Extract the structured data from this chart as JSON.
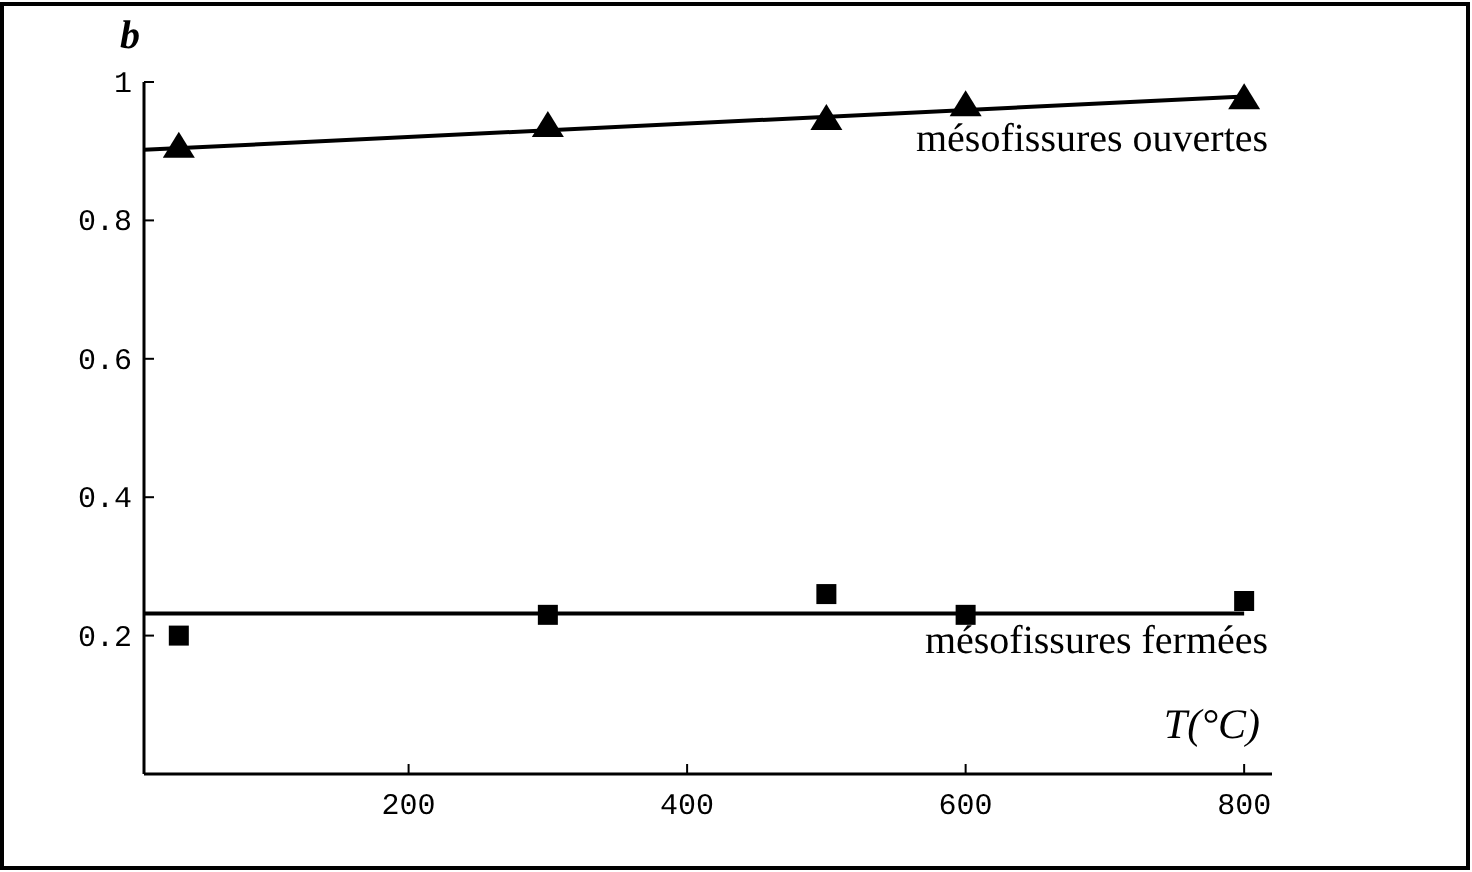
{
  "chart_data": {
    "type": "scatter",
    "xlabel": "T(°C)",
    "ylabel": "b",
    "xlim": [
      10,
      820
    ],
    "ylim": [
      0,
      1
    ],
    "xticks": [
      200,
      400,
      600,
      800
    ],
    "yticks": [
      0.2,
      0.4,
      0.6,
      0.8,
      1
    ],
    "grid": false,
    "series": [
      {
        "name": "mésofissures ouvertes",
        "marker": "triangle",
        "color": "#000000",
        "x": [
          35,
          300,
          500,
          600,
          800
        ],
        "values": [
          0.905,
          0.935,
          0.945,
          0.965,
          0.975
        ]
      },
      {
        "type": "line",
        "marker": "none",
        "color": "#000000",
        "x": [
          10,
          800
        ],
        "values": [
          0.902,
          0.979
        ]
      },
      {
        "name": "mésofissures fermées",
        "marker": "square",
        "color": "#000000",
        "x": [
          35,
          300,
          500,
          600,
          800
        ],
        "values": [
          0.2,
          0.23,
          0.26,
          0.23,
          0.25
        ]
      },
      {
        "type": "line",
        "marker": "none",
        "color": "#000000",
        "x": [
          10,
          800
        ],
        "values": [
          0.232,
          0.232
        ]
      }
    ]
  }
}
